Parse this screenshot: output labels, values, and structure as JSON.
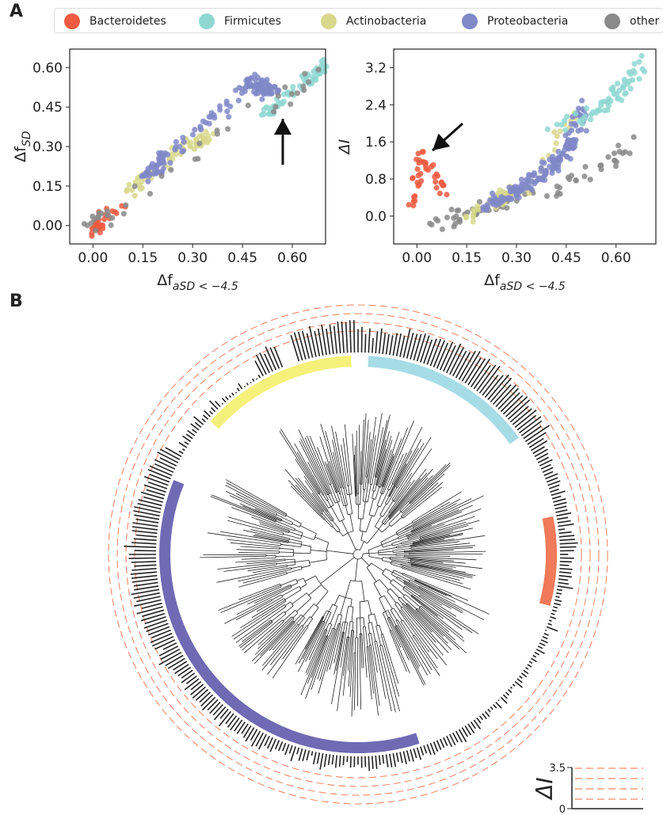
{
  "panels": {
    "a": "A",
    "b": "B"
  },
  "legend": [
    {
      "name": "Bacteroidetes",
      "color": "#f05a41"
    },
    {
      "name": "Firmicutes",
      "color": "#8fd8d2"
    },
    {
      "name": "Actinobacteria",
      "color": "#d8d88c"
    },
    {
      "name": "Proteobacteria",
      "color": "#8088c8"
    },
    {
      "name": "other",
      "color": "#8a8a8a"
    }
  ],
  "chart_data": [
    {
      "type": "scatter",
      "panel": "A-left",
      "ylabel_base": "Δf",
      "ylabel_sub": "SD",
      "xlabel_base": "Δf",
      "xlabel_sub": "aSD < −4.5",
      "xlim": [
        -0.07,
        0.7
      ],
      "ylim": [
        -0.07,
        0.67
      ],
      "xticks": [
        0.0,
        0.15,
        0.3,
        0.45,
        0.6
      ],
      "xtick_labels": [
        "0.00",
        "0.15",
        "0.30",
        "0.45",
        "0.60"
      ],
      "yticks": [
        0.0,
        0.15,
        0.3,
        0.45,
        0.6
      ],
      "ytick_labels": [
        "0.00",
        "0.15",
        "0.30",
        "0.45",
        "0.60"
      ],
      "grid": false,
      "clusters": [
        {
          "group": "Bacteroidetes",
          "x": [
            0.0,
            0.0,
            0.03,
            0.1
          ],
          "y": [
            -0.02,
            -0.02,
            0.02,
            0.09
          ],
          "approx_n": 30
        },
        {
          "group": "Actinobacteria",
          "x": [
            0.09,
            0.16,
            0.3,
            0.35
          ],
          "y": [
            0.12,
            0.19,
            0.32,
            0.33
          ],
          "approx_n": 60
        },
        {
          "group": "Proteobacteria",
          "x": [
            0.15,
            0.22,
            0.48,
            0.55
          ],
          "y": [
            0.18,
            0.25,
            0.55,
            0.5
          ],
          "approx_n": 140
        },
        {
          "group": "Firmicutes",
          "x": [
            0.52,
            0.58,
            0.68,
            0.69
          ],
          "y": [
            0.42,
            0.48,
            0.58,
            0.62
          ],
          "approx_n": 60
        },
        {
          "group": "other",
          "x": [
            0.0,
            0.05,
            0.55,
            0.7
          ],
          "y": [
            0.0,
            0.05,
            0.48,
            0.6
          ],
          "approx_n": 40
        }
      ],
      "annotation": "arrow pointing up at x≈0.60"
    },
    {
      "type": "scatter",
      "panel": "A-right",
      "ylabel": "ΔI",
      "xlabel_base": "Δf",
      "xlabel_sub": "aSD < −4.5",
      "xlim": [
        -0.07,
        0.72
      ],
      "ylim": [
        -0.6,
        3.6
      ],
      "xticks": [
        0.0,
        0.15,
        0.3,
        0.45,
        0.6
      ],
      "xtick_labels": [
        "0.00",
        "0.15",
        "0.30",
        "0.45",
        "0.60"
      ],
      "yticks": [
        0.0,
        0.8,
        1.6,
        2.4,
        3.2
      ],
      "ytick_labels": [
        "0.0",
        "0.8",
        "1.6",
        "2.4",
        "3.2"
      ],
      "grid": false,
      "clusters": [
        {
          "group": "Bacteroidetes",
          "x": [
            -0.01,
            0.0,
            0.01,
            0.1
          ],
          "y": [
            0.2,
            0.8,
            1.4,
            0.4
          ],
          "approx_n": 40
        },
        {
          "group": "other",
          "x": [
            0.05,
            0.15,
            0.4,
            0.68
          ],
          "y": [
            -0.3,
            0.1,
            0.5,
            1.6
          ],
          "approx_n": 70
        },
        {
          "group": "Actinobacteria",
          "x": [
            0.15,
            0.25,
            0.33,
            0.48
          ],
          "y": [
            0.0,
            0.4,
            0.6,
            2.2
          ],
          "approx_n": 60
        },
        {
          "group": "Proteobacteria",
          "x": [
            0.2,
            0.32,
            0.45,
            0.5
          ],
          "y": [
            0.2,
            0.6,
            1.3,
            2.3
          ],
          "approx_n": 170
        },
        {
          "group": "Firmicutes",
          "x": [
            0.38,
            0.55,
            0.63,
            0.69
          ],
          "y": [
            1.8,
            2.3,
            2.8,
            3.4
          ],
          "approx_n": 60
        }
      ],
      "annotation": "arrow pointing down-left at Bacteroidetes cluster"
    },
    {
      "type": "bar",
      "panel": "B",
      "description_kind": "circular phylogenetic tree with radial ΔI bars",
      "scale_label": "ΔI",
      "scale_ticks": [
        "0",
        "3.5"
      ],
      "scale_max": 3.5,
      "reference_lines": 4,
      "clade_arcs": [
        {
          "group": "Actinobacteria",
          "color": "#f5f07a"
        },
        {
          "group": "Firmicutes",
          "color": "#a6dce6"
        },
        {
          "group": "Bacteroidetes",
          "color": "#f07a5a"
        },
        {
          "group": "Proteobacteria",
          "color": "#6f6ab3"
        }
      ]
    }
  ]
}
